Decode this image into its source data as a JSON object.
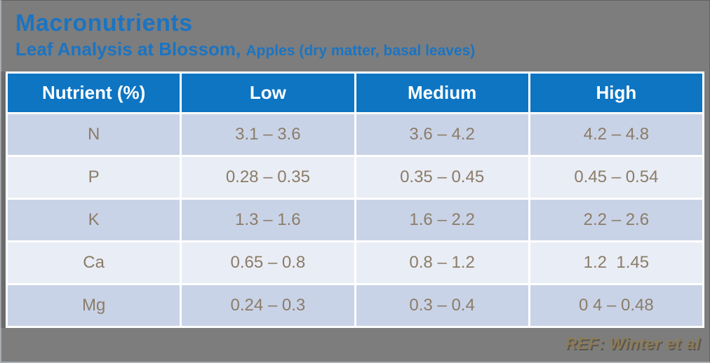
{
  "page": {
    "title": "Macronutrients",
    "subtitle_main": "Leaf Analysis at Blossom, ",
    "subtitle_detail": "Apples (dry matter, basal leaves)",
    "reference": "REF: Winter et al"
  },
  "table": {
    "headers": [
      "Nutrient (%)",
      "Low",
      "Medium",
      "High"
    ],
    "rows": [
      {
        "nutrient": "N",
        "low": "3.1 – 3.6",
        "medium": "3.6 – 4.2",
        "high": "4.2 – 4.8"
      },
      {
        "nutrient": "P",
        "low": "0.28 – 0.35",
        "medium": "0.35 – 0.45",
        "high": "0.45 – 0.54"
      },
      {
        "nutrient": "K",
        "low": "1.3 – 1.6",
        "medium": "1.6 – 2.2",
        "high": "2.2 – 2.6"
      },
      {
        "nutrient": "Ca",
        "low": "0.65 – 0.8",
        "medium": "0.8 – 1.2",
        "high": "1.2  1.45"
      },
      {
        "nutrient": "Mg",
        "low": "0.24 – 0.3",
        "medium": "0.3 – 0.4",
        "high": "0 4 – 0.48"
      }
    ]
  },
  "colors": {
    "background": "#7d7d7d",
    "title_blue": "#1b74c2",
    "header_blue": "#0d75c2",
    "row_odd": "#c9d3e7",
    "row_even": "#e9edf5",
    "cell_text": "#8b7c68",
    "ref_text": "#8d7b58",
    "table_border": "#ffffff"
  }
}
